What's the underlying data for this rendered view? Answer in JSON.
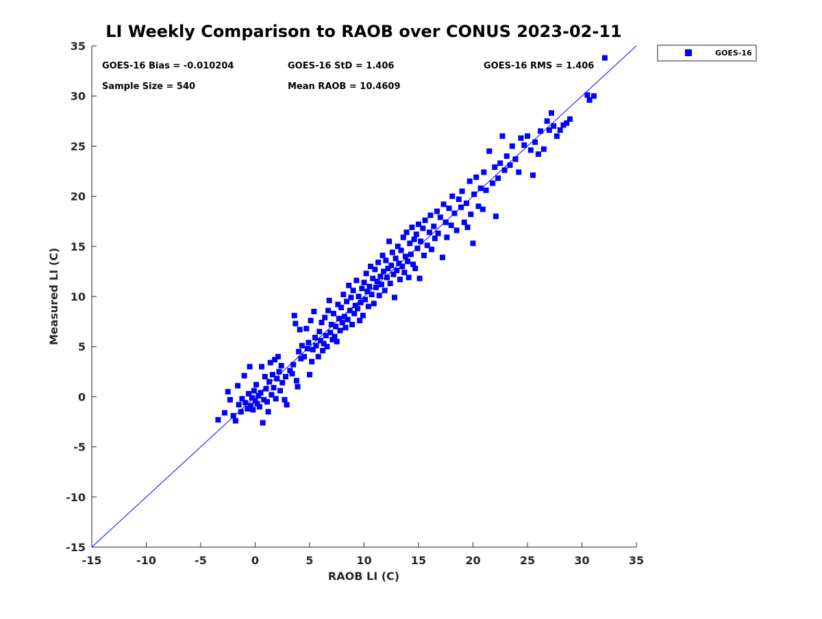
{
  "chart_data": {
    "type": "scatter",
    "title": "LI Weekly Comparison to RAOB over CONUS 2023-02-11",
    "xlabel": "RAOB LI (C)",
    "ylabel": "Measured LI (C)",
    "xlim": [
      -15,
      35
    ],
    "ylim": [
      -15,
      35
    ],
    "xticks": [
      "-15",
      "-10",
      "-5",
      "0",
      "5",
      "10",
      "15",
      "20",
      "25",
      "30",
      "35"
    ],
    "yticks": [
      "-15",
      "-10",
      "-5",
      "0",
      "5",
      "10",
      "15",
      "20",
      "25",
      "30",
      "35"
    ],
    "grid": false,
    "legend": {
      "position": "outside-top-right",
      "entries": [
        "GOES-16"
      ]
    },
    "reference_line": {
      "x": [
        -15,
        35
      ],
      "y": [
        -15,
        35
      ],
      "color": "#0000ff"
    },
    "annotations": {
      "bias": "GOES-16 Bias = -0.010204",
      "std": "GOES-16 StD = 1.406",
      "rms": "GOES-16 RMS = 1.406",
      "sample": "Sample Size = 540",
      "mean": "Mean RAOB = 10.4609"
    },
    "series": [
      {
        "name": "GOES-16",
        "color": "#0000ff",
        "marker": "square",
        "points": [
          [
            -3.4,
            -2.3
          ],
          [
            -2.8,
            -1.6
          ],
          [
            -2.5,
            0.5
          ],
          [
            -2.3,
            -0.3
          ],
          [
            -2.0,
            -1.9
          ],
          [
            -1.8,
            -2.4
          ],
          [
            -1.6,
            1.1
          ],
          [
            -1.5,
            -0.8
          ],
          [
            -1.3,
            -1.5
          ],
          [
            -1.2,
            -0.2
          ],
          [
            -1.0,
            2.1
          ],
          [
            -0.9,
            -0.6
          ],
          [
            -0.7,
            -1.2
          ],
          [
            -0.6,
            0.3
          ],
          [
            -0.5,
            3.0
          ],
          [
            -0.4,
            -0.9
          ],
          [
            -0.3,
            -0.1
          ],
          [
            -0.2,
            -1.3
          ],
          [
            -0.1,
            0.6
          ],
          [
            0.0,
            -0.4
          ],
          [
            0.1,
            1.2
          ],
          [
            0.2,
            -0.7
          ],
          [
            0.3,
            0.1
          ],
          [
            0.4,
            -1.0
          ],
          [
            0.5,
            0.4
          ],
          [
            0.6,
            3.0
          ],
          [
            0.7,
            -2.6
          ],
          [
            0.8,
            -0.3
          ],
          [
            0.9,
            2.0
          ],
          [
            1.0,
            0.8
          ],
          [
            1.1,
            -0.5
          ],
          [
            1.2,
            -1.5
          ],
          [
            1.3,
            1.5
          ],
          [
            1.4,
            3.4
          ],
          [
            1.5,
            0.2
          ],
          [
            1.6,
            2.2
          ],
          [
            1.7,
            0.9
          ],
          [
            1.8,
            3.7
          ],
          [
            1.9,
            -0.2
          ],
          [
            2.0,
            1.8
          ],
          [
            2.1,
            4.0
          ],
          [
            2.2,
            2.5
          ],
          [
            2.3,
            0.6
          ],
          [
            2.4,
            3.1
          ],
          [
            2.5,
            1.4
          ],
          [
            2.7,
            -0.3
          ],
          [
            2.8,
            2.0
          ],
          [
            2.9,
            -0.8
          ],
          [
            3.2,
            2.6
          ],
          [
            3.4,
            2.3
          ],
          [
            3.5,
            3.2
          ],
          [
            3.6,
            8.1
          ],
          [
            3.7,
            7.3
          ],
          [
            3.8,
            1.6
          ],
          [
            3.9,
            1.0
          ],
          [
            4.0,
            4.5
          ],
          [
            4.1,
            6.7
          ],
          [
            4.2,
            3.8
          ],
          [
            4.3,
            5.1
          ],
          [
            4.5,
            4.0
          ],
          [
            4.7,
            6.8
          ],
          [
            4.8,
            4.8
          ],
          [
            4.9,
            5.4
          ],
          [
            5.0,
            2.2
          ],
          [
            5.1,
            7.6
          ],
          [
            5.2,
            3.5
          ],
          [
            5.3,
            4.7
          ],
          [
            5.4,
            8.5
          ],
          [
            5.5,
            5.9
          ],
          [
            5.6,
            5.1
          ],
          [
            5.8,
            4.0
          ],
          [
            5.9,
            6.5
          ],
          [
            6.0,
            5.6
          ],
          [
            6.1,
            7.4
          ],
          [
            6.2,
            4.6
          ],
          [
            6.3,
            5.3
          ],
          [
            6.4,
            7.9
          ],
          [
            6.5,
            6.1
          ],
          [
            6.6,
            5.0
          ],
          [
            6.7,
            8.6
          ],
          [
            6.8,
            9.6
          ],
          [
            6.9,
            6.4
          ],
          [
            7.0,
            7.2
          ],
          [
            7.1,
            5.7
          ],
          [
            7.2,
            8.3
          ],
          [
            7.3,
            6.0
          ],
          [
            7.4,
            7.0
          ],
          [
            7.5,
            5.5
          ],
          [
            7.6,
            9.2
          ],
          [
            7.7,
            7.8
          ],
          [
            7.8,
            6.6
          ],
          [
            7.9,
            8.9
          ],
          [
            8.0,
            7.4
          ],
          [
            8.1,
            10.2
          ],
          [
            8.2,
            8.0
          ],
          [
            8.3,
            6.9
          ],
          [
            8.4,
            9.5
          ],
          [
            8.5,
            7.7
          ],
          [
            8.6,
            11.1
          ],
          [
            8.7,
            8.6
          ],
          [
            8.8,
            9.9
          ],
          [
            8.9,
            7.2
          ],
          [
            9.0,
            10.6
          ],
          [
            9.1,
            8.3
          ],
          [
            9.2,
            9.1
          ],
          [
            9.3,
            11.6
          ],
          [
            9.4,
            8.8
          ],
          [
            9.5,
            10.0
          ],
          [
            9.6,
            7.6
          ],
          [
            9.7,
            9.4
          ],
          [
            9.8,
            10.8
          ],
          [
            9.9,
            8.1
          ],
          [
            10.0,
            11.4
          ],
          [
            10.1,
            9.7
          ],
          [
            10.2,
            12.3
          ],
          [
            10.3,
            10.5
          ],
          [
            10.4,
            9.0
          ],
          [
            10.5,
            11.0
          ],
          [
            10.6,
            13.0
          ],
          [
            10.7,
            10.2
          ],
          [
            10.8,
            11.8
          ],
          [
            10.9,
            9.3
          ],
          [
            11.0,
            12.7
          ],
          [
            11.1,
            10.9
          ],
          [
            11.2,
            11.5
          ],
          [
            11.3,
            13.4
          ],
          [
            11.4,
            10.1
          ],
          [
            11.5,
            12.0
          ],
          [
            11.6,
            11.2
          ],
          [
            11.7,
            14.1
          ],
          [
            11.8,
            12.5
          ],
          [
            11.9,
            10.6
          ],
          [
            12.0,
            13.6
          ],
          [
            12.1,
            11.9
          ],
          [
            12.2,
            12.8
          ],
          [
            12.3,
            15.5
          ],
          [
            12.4,
            11.3
          ],
          [
            12.5,
            13.1
          ],
          [
            12.6,
            14.4
          ],
          [
            12.7,
            12.2
          ],
          [
            12.8,
            9.9
          ],
          [
            12.9,
            13.8
          ],
          [
            13.0,
            12.6
          ],
          [
            13.1,
            15.0
          ],
          [
            13.2,
            13.3
          ],
          [
            13.3,
            11.7
          ],
          [
            13.4,
            14.6
          ],
          [
            13.5,
            13.0
          ],
          [
            13.6,
            15.9
          ],
          [
            13.7,
            12.4
          ],
          [
            13.8,
            14.0
          ],
          [
            13.9,
            16.4
          ],
          [
            14.0,
            13.5
          ],
          [
            14.1,
            11.9
          ],
          [
            14.2,
            15.3
          ],
          [
            14.3,
            14.2
          ],
          [
            14.4,
            16.9
          ],
          [
            14.5,
            13.2
          ],
          [
            14.6,
            15.7
          ],
          [
            14.7,
            12.8
          ],
          [
            14.8,
            16.2
          ],
          [
            14.9,
            14.8
          ],
          [
            15.0,
            17.2
          ],
          [
            15.1,
            11.8
          ],
          [
            15.2,
            15.5
          ],
          [
            15.4,
            16.8
          ],
          [
            15.5,
            14.1
          ],
          [
            15.6,
            17.6
          ],
          [
            15.8,
            15.1
          ],
          [
            16.0,
            16.4
          ],
          [
            16.1,
            18.1
          ],
          [
            16.2,
            14.7
          ],
          [
            16.4,
            17.0
          ],
          [
            16.5,
            15.8
          ],
          [
            16.7,
            18.5
          ],
          [
            16.8,
            16.3
          ],
          [
            17.0,
            17.9
          ],
          [
            17.2,
            13.9
          ],
          [
            17.3,
            19.2
          ],
          [
            17.5,
            17.4
          ],
          [
            17.6,
            15.9
          ],
          [
            17.8,
            18.8
          ],
          [
            18.0,
            17.1
          ],
          [
            18.1,
            20.0
          ],
          [
            18.3,
            18.3
          ],
          [
            18.5,
            16.6
          ],
          [
            18.7,
            19.7
          ],
          [
            18.9,
            18.9
          ],
          [
            19.0,
            20.5
          ],
          [
            19.2,
            17.4
          ],
          [
            19.4,
            19.3
          ],
          [
            19.5,
            16.9
          ],
          [
            19.7,
            21.5
          ],
          [
            19.8,
            18.2
          ],
          [
            20.0,
            15.3
          ],
          [
            20.1,
            20.2
          ],
          [
            20.3,
            21.9
          ],
          [
            20.5,
            19.0
          ],
          [
            20.7,
            20.8
          ],
          [
            20.9,
            18.7
          ],
          [
            21.0,
            22.4
          ],
          [
            21.2,
            20.6
          ],
          [
            21.5,
            24.5
          ],
          [
            21.8,
            21.3
          ],
          [
            22.0,
            22.9
          ],
          [
            22.1,
            18.0
          ],
          [
            22.3,
            21.8
          ],
          [
            22.5,
            23.3
          ],
          [
            22.7,
            26.0
          ],
          [
            22.9,
            22.6
          ],
          [
            23.1,
            24.0
          ],
          [
            23.4,
            23.1
          ],
          [
            23.6,
            25.0
          ],
          [
            23.9,
            23.7
          ],
          [
            24.2,
            22.4
          ],
          [
            24.4,
            25.8
          ],
          [
            24.7,
            25.1
          ],
          [
            25.0,
            26.0
          ],
          [
            25.3,
            24.6
          ],
          [
            25.5,
            22.1
          ],
          [
            25.7,
            25.4
          ],
          [
            26.0,
            24.2
          ],
          [
            26.2,
            26.5
          ],
          [
            26.5,
            24.7
          ],
          [
            26.8,
            27.5
          ],
          [
            27.0,
            26.6
          ],
          [
            27.2,
            28.3
          ],
          [
            27.4,
            27.0
          ],
          [
            27.7,
            26.0
          ],
          [
            28.0,
            26.6
          ],
          [
            28.3,
            27.1
          ],
          [
            28.6,
            27.3
          ],
          [
            28.9,
            27.7
          ],
          [
            30.5,
            30.1
          ],
          [
            30.7,
            29.6
          ],
          [
            31.1,
            30.0
          ],
          [
            32.1,
            33.8
          ]
        ]
      }
    ]
  }
}
